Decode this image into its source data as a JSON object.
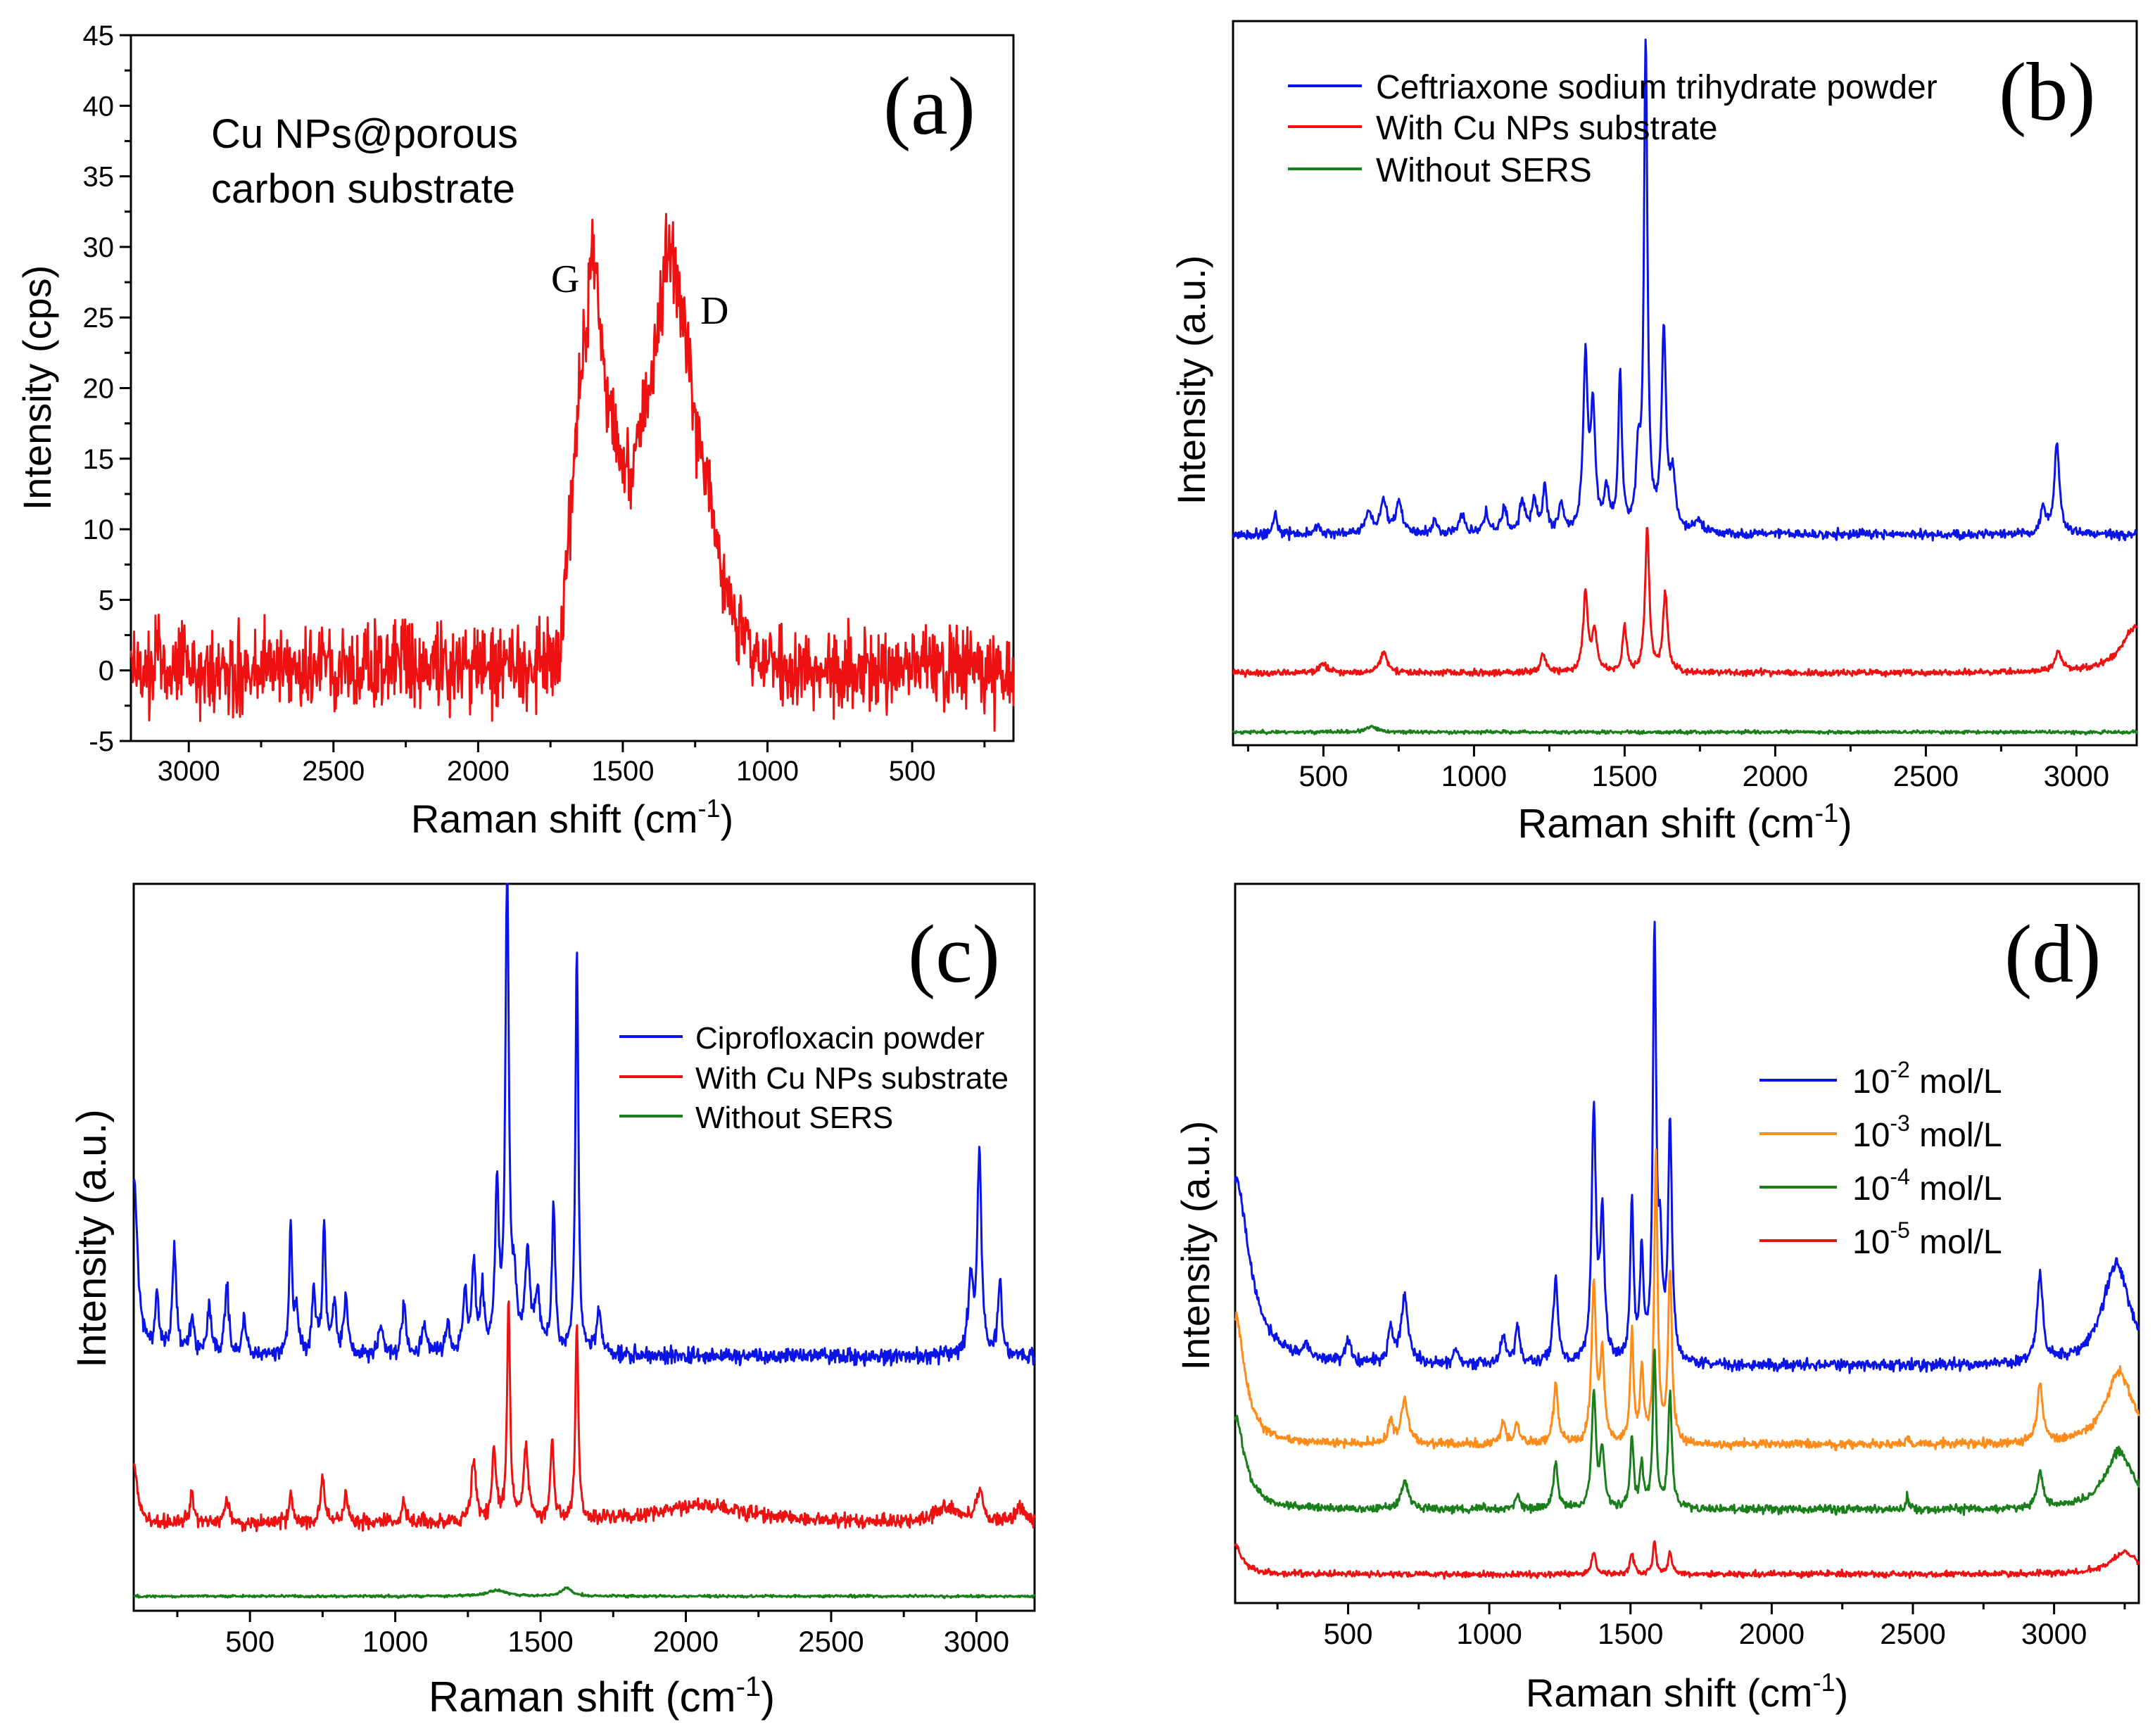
{
  "colors": {
    "blue": "#0a14e6",
    "red": "#ee1111",
    "green": "#1a7f1a",
    "orange": "#ff8c1a",
    "axis": "#000000"
  },
  "chart_data": [
    {
      "id": "a",
      "type": "line",
      "panel_label": "(a)",
      "xlabel_main": "Raman shift (cm",
      "xlabel_sup": "-1",
      "xlabel_end": ")",
      "ylabel": "Intensity (cps)",
      "xlim": [
        3200,
        150
      ],
      "ylim": [
        -5,
        45
      ],
      "x_reversed": true,
      "xticks": [
        3000,
        2500,
        2000,
        1500,
        1000,
        500
      ],
      "yticks": [
        -5,
        0,
        5,
        10,
        15,
        20,
        25,
        30,
        35,
        40,
        45
      ],
      "annotation_lines": [
        "Cu NPs@porous",
        "carbon substrate"
      ],
      "peak_labels": [
        {
          "text": "G",
          "x": 1600,
          "y": 29
        },
        {
          "text": "D",
          "x": 1330,
          "y": 24
        }
      ],
      "series": [
        {
          "name": "Cu NPs@porous carbon substrate",
          "color": "red",
          "noise": 2.0,
          "seed": 11,
          "baseline": [
            [
              3200,
              0
            ],
            [
              1720,
              0.5
            ],
            [
              1650,
              20
            ],
            [
              1600,
              30
            ],
            [
              1560,
              20
            ],
            [
              1500,
              14
            ],
            [
              1470,
              14
            ],
            [
              1400,
              21
            ],
            [
              1350,
              29
            ],
            [
              1310,
              28
            ],
            [
              1250,
              18
            ],
            [
              1150,
              6
            ],
            [
              1050,
              1
            ],
            [
              950,
              0
            ],
            [
              150,
              0
            ]
          ]
        }
      ]
    },
    {
      "id": "b",
      "type": "line",
      "panel_label": "(b)",
      "xlabel_main": "Raman shift (cm",
      "xlabel_sup": "-1",
      "xlabel_end": ")",
      "ylabel": "Intensity (a.u.)",
      "xlim": [
        200,
        3200
      ],
      "ylim": [
        0,
        110
      ],
      "x_reversed": false,
      "xticks": [
        500,
        1000,
        1500,
        2000,
        2500,
        3000
      ],
      "yticks": [],
      "legend_position": "top-left",
      "series": [
        {
          "name": "Ceftriaxone sodium trihydrate powder",
          "color": "blue",
          "offset": 32,
          "noise": 0.5,
          "seed": 21,
          "peaks": [
            [
              340,
              3,
              8
            ],
            [
              480,
              1.5,
              10
            ],
            [
              650,
              3,
              15
            ],
            [
              700,
              5,
              12
            ],
            [
              750,
              5,
              12
            ],
            [
              870,
              2,
              10
            ],
            [
              960,
              3,
              10
            ],
            [
              1040,
              3,
              10
            ],
            [
              1100,
              4,
              10
            ],
            [
              1160,
              5,
              10
            ],
            [
              1200,
              5,
              10
            ],
            [
              1235,
              7,
              8
            ],
            [
              1290,
              4,
              10
            ],
            [
              1370,
              26,
              9
            ],
            [
              1395,
              18,
              9
            ],
            [
              1440,
              6,
              10
            ],
            [
              1485,
              24,
              7
            ],
            [
              1545,
              10,
              8
            ],
            [
              1570,
              74,
              7
            ],
            [
              1630,
              30,
              9
            ],
            [
              1660,
              8,
              10
            ],
            [
              1745,
              2,
              15
            ],
            [
              2890,
              4,
              10
            ],
            [
              2935,
              14,
              10
            ]
          ]
        },
        {
          "name": "With Cu NPs substrate",
          "color": "red",
          "offset": 11,
          "noise": 0.35,
          "seed": 22,
          "peaks": [
            [
              500,
              1.5,
              12
            ],
            [
              700,
              3,
              15
            ],
            [
              1230,
              3,
              10
            ],
            [
              1370,
              12,
              9
            ],
            [
              1400,
              6,
              10
            ],
            [
              1500,
              7,
              8
            ],
            [
              1575,
              22,
              8
            ],
            [
              1635,
              12,
              9
            ],
            [
              2940,
              3,
              12
            ],
            [
              3200,
              7,
              60
            ]
          ]
        },
        {
          "name": "Without SERS",
          "color": "green",
          "offset": 2,
          "noise": 0.18,
          "seed": 23,
          "peaks": [
            [
              660,
              0.8,
              20
            ]
          ]
        }
      ]
    },
    {
      "id": "c",
      "type": "line",
      "panel_label": "(c)",
      "xlabel_main": "Raman shift (cm",
      "xlabel_sup": "-1",
      "xlabel_end": ")",
      "ylabel": "Intensity (a.u.)",
      "xlim": [
        100,
        3200
      ],
      "ylim": [
        0,
        100
      ],
      "x_reversed": false,
      "xticks": [
        500,
        1000,
        1500,
        2000,
        2500,
        3000
      ],
      "yticks": [],
      "legend_position": "center-right",
      "series": [
        {
          "name": "Ciprofloxacin powder",
          "color": "blue",
          "offset": 35,
          "noise": 0.8,
          "seed": 31,
          "peaks": [
            [
              100,
              25,
              15
            ],
            [
              180,
              8,
              8
            ],
            [
              240,
              15,
              8
            ],
            [
              300,
              5,
              8
            ],
            [
              360,
              7,
              8
            ],
            [
              420,
              10,
              8
            ],
            [
              480,
              5,
              8
            ],
            [
              640,
              18,
              6
            ],
            [
              660,
              6,
              8
            ],
            [
              720,
              9,
              8
            ],
            [
              755,
              18,
              6
            ],
            [
              790,
              7,
              8
            ],
            [
              830,
              8,
              8
            ],
            [
              950,
              4,
              10
            ],
            [
              1030,
              7,
              8
            ],
            [
              1100,
              4,
              10
            ],
            [
              1180,
              4,
              10
            ],
            [
              1240,
              8,
              8
            ],
            [
              1270,
              12,
              8
            ],
            [
              1300,
              8,
              8
            ],
            [
              1350,
              23,
              7
            ],
            [
              1385,
              68,
              7
            ],
            [
              1410,
              8,
              8
            ],
            [
              1455,
              14,
              10
            ],
            [
              1490,
              8,
              10
            ],
            [
              1545,
              20,
              7
            ],
            [
              1625,
              56,
              6
            ],
            [
              1700,
              6,
              10
            ],
            [
              2980,
              10,
              10
            ],
            [
              3010,
              28,
              8
            ],
            [
              3080,
              10,
              8
            ]
          ]
        },
        {
          "name": "With Cu NPs substrate",
          "color": "red",
          "offset": 12,
          "noise": 0.7,
          "seed": 32,
          "peaks": [
            [
              100,
              8,
              15
            ],
            [
              300,
              4,
              8
            ],
            [
              420,
              3,
              10
            ],
            [
              640,
              4,
              8
            ],
            [
              750,
              6,
              8
            ],
            [
              830,
              4,
              8
            ],
            [
              1030,
              3,
              8
            ],
            [
              1270,
              8,
              10
            ],
            [
              1340,
              10,
              8
            ],
            [
              1390,
              30,
              6
            ],
            [
              1450,
              10,
              10
            ],
            [
              1540,
              11,
              7
            ],
            [
              1625,
              27,
              6
            ],
            [
              2050,
              2.5,
              200
            ],
            [
              2900,
              2,
              50
            ],
            [
              3010,
              4,
              15
            ],
            [
              3150,
              2,
              20
            ]
          ]
        },
        {
          "name": "Without SERS",
          "color": "green",
          "offset": 2,
          "noise": 0.12,
          "seed": 33,
          "peaks": [
            [
              1350,
              0.8,
              40
            ],
            [
              1590,
              1.2,
              20
            ]
          ]
        }
      ]
    },
    {
      "id": "d",
      "type": "line",
      "panel_label": "(d)",
      "xlabel_main": "Raman shift (cm",
      "xlabel_sup": "-1",
      "xlabel_end": ")",
      "ylabel": "Intensity (a.u.)",
      "xlim": [
        100,
        3300
      ],
      "ylim": [
        0,
        100
      ],
      "x_reversed": false,
      "xticks": [
        500,
        1000,
        1500,
        2000,
        2500,
        3000
      ],
      "yticks": [],
      "legend_position": "center-right",
      "legend_base": "10",
      "legend_unit": " mol/L",
      "series": [
        {
          "name": "10-2 mol/L",
          "exp": "-2",
          "color": "blue",
          "offset": 33,
          "noise": 0.55,
          "seed": 41,
          "peaks": [
            [
              100,
              26,
              60
            ],
            [
              350,
              2,
              10
            ],
            [
              500,
              3,
              10
            ],
            [
              650,
              5,
              10
            ],
            [
              700,
              9,
              15
            ],
            [
              880,
              2,
              10
            ],
            [
              1050,
              4,
              10
            ],
            [
              1100,
              5,
              10
            ],
            [
              1235,
              12,
              10
            ],
            [
              1370,
              35,
              9
            ],
            [
              1400,
              20,
              9
            ],
            [
              1505,
              22,
              7
            ],
            [
              1540,
              15,
              7
            ],
            [
              1585,
              59,
              7
            ],
            [
              1605,
              14,
              8
            ],
            [
              1640,
              33,
              8
            ],
            [
              2950,
              12,
              12
            ],
            [
              3220,
              14,
              60
            ]
          ]
        },
        {
          "name": "10-3 mol/L",
          "exp": "-3",
          "color": "orange",
          "offset": 22,
          "noise": 0.45,
          "seed": 42,
          "peaks": [
            [
              100,
              18,
              40
            ],
            [
              650,
              3,
              10
            ],
            [
              700,
              6,
              15
            ],
            [
              1050,
              3,
              10
            ],
            [
              1100,
              3,
              10
            ],
            [
              1235,
              8,
              10
            ],
            [
              1370,
              22,
              9
            ],
            [
              1400,
              12,
              9
            ],
            [
              1505,
              15,
              7
            ],
            [
              1540,
              10,
              7
            ],
            [
              1590,
              40,
              7
            ],
            [
              1640,
              24,
              8
            ],
            [
              2480,
              1.5,
              4
            ],
            [
              2950,
              8,
              12
            ],
            [
              3230,
              10,
              60
            ]
          ]
        },
        {
          "name": "10-4 mol/L",
          "exp": "-4",
          "color": "green",
          "offset": 13,
          "noise": 0.4,
          "seed": 43,
          "peaks": [
            [
              100,
              13,
              40
            ],
            [
              700,
              4,
              15
            ],
            [
              1100,
              2,
              10
            ],
            [
              1235,
              6,
              10
            ],
            [
              1370,
              16,
              9
            ],
            [
              1400,
              8,
              9
            ],
            [
              1505,
              10,
              7
            ],
            [
              1540,
              6,
              7
            ],
            [
              1585,
              22,
              7
            ],
            [
              1640,
              16,
              8
            ],
            [
              2480,
              2,
              4
            ],
            [
              2950,
              5,
              12
            ],
            [
              3230,
              8,
              60
            ]
          ]
        },
        {
          "name": "10-5 mol/L",
          "exp": "-5",
          "color": "red",
          "offset": 4,
          "noise": 0.3,
          "seed": 44,
          "peaks": [
            [
              100,
              4,
              30
            ],
            [
              1370,
              3,
              9
            ],
            [
              1505,
              3,
              8
            ],
            [
              1585,
              4.5,
              7
            ],
            [
              1640,
              3,
              8
            ],
            [
              3250,
              3,
              60
            ]
          ]
        }
      ]
    }
  ]
}
